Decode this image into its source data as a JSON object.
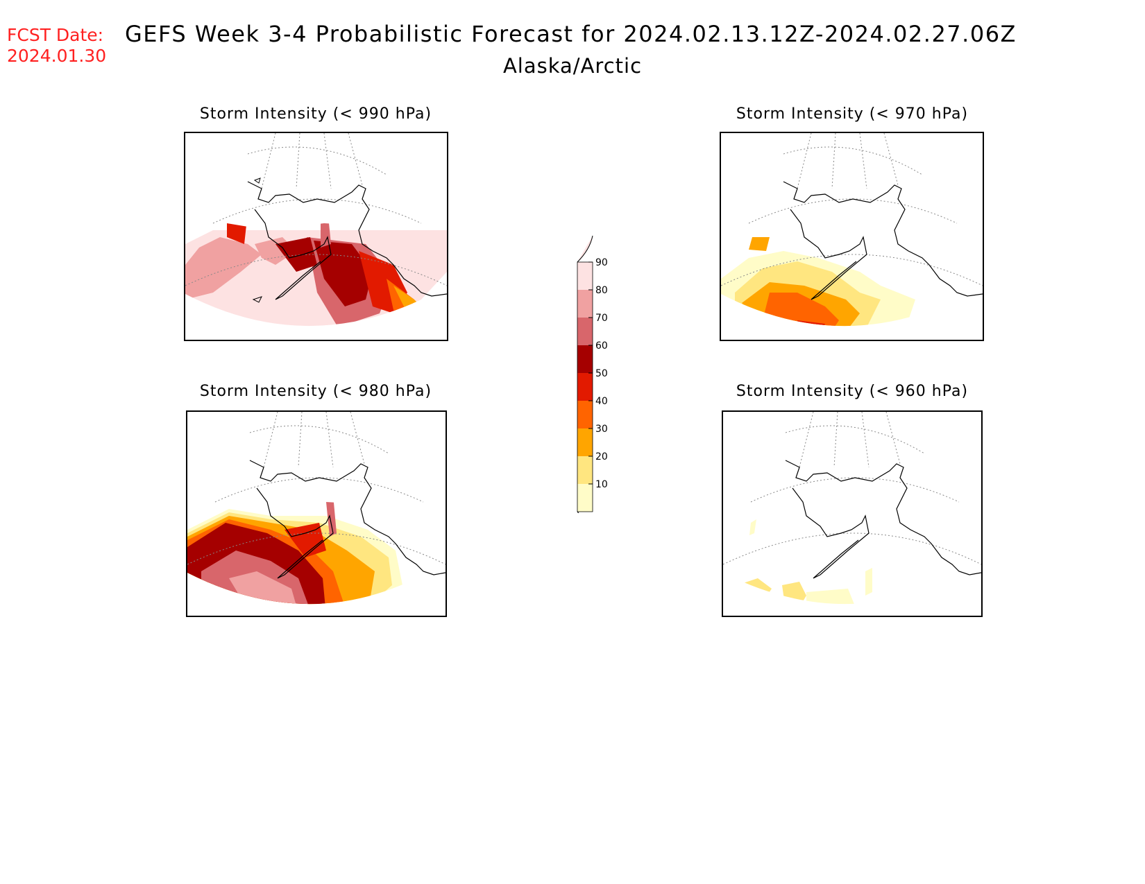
{
  "header": {
    "fcst_label": "FCST Date:",
    "fcst_date": "2024.01.30",
    "title": "GEFS Week 3-4 Probabilistic Forecast for 2024.02.13.12Z-2024.02.27.06Z",
    "subtitle": "Alaska/Arctic"
  },
  "panels": [
    {
      "title": "Storm Intensity (< 990 hPa)"
    },
    {
      "title": "Storm Intensity (< 970 hPa)"
    },
    {
      "title": "Storm Intensity (< 980 hPa)"
    },
    {
      "title": "Storm Intensity (< 960 hPa)"
    }
  ],
  "colorbar": {
    "ticks": [
      "10",
      "20",
      "30",
      "40",
      "50",
      "60",
      "70",
      "80",
      "90"
    ],
    "colors": [
      "#fffcc8",
      "#ffe680",
      "#ffa500",
      "#ff6400",
      "#e21a00",
      "#a50000",
      "#d8666b",
      "#f0a1a1",
      "#fde2e2"
    ]
  }
}
